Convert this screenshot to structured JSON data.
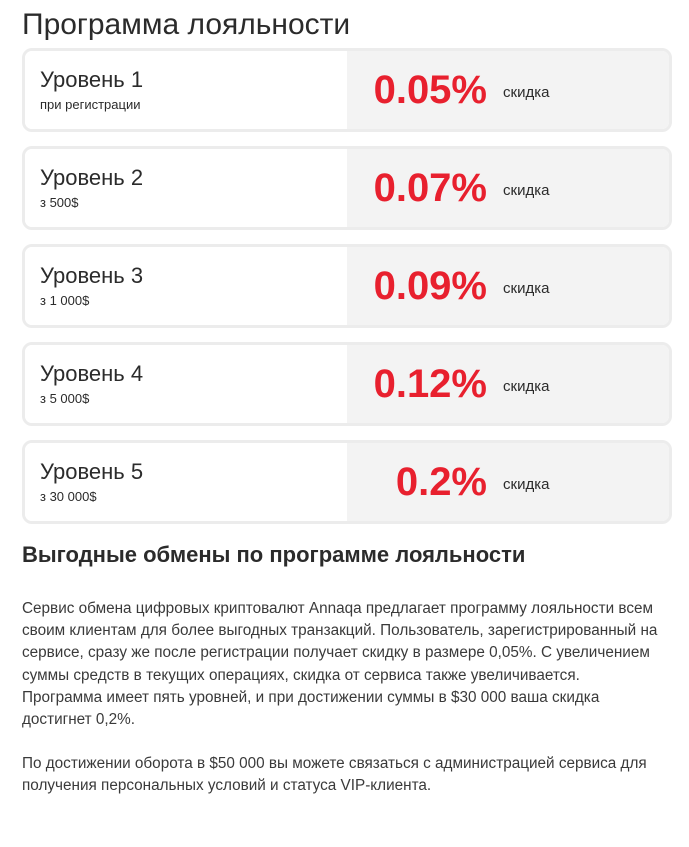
{
  "page": {
    "title": "Программа лояльности"
  },
  "levels": [
    {
      "name": "Уровень 1",
      "condition": "при регистрации",
      "discount": "0.05%",
      "unit": "скидка"
    },
    {
      "name": "Уровень 2",
      "condition": "з 500$",
      "discount": "0.07%",
      "unit": "скидка"
    },
    {
      "name": "Уровень 3",
      "condition": "з 1 000$",
      "discount": "0.09%",
      "unit": "скидка"
    },
    {
      "name": "Уровень 4",
      "condition": "з 5 000$",
      "discount": "0.12%",
      "unit": "скидка"
    },
    {
      "name": "Уровень 5",
      "condition": "з 30 000$",
      "discount": "0.2%",
      "unit": "скидка"
    }
  ],
  "section": {
    "title": "Выгодные обмены по программе лояльности",
    "paragraphs": [
      "Сервис обмена цифровых криптовалют Annaqa предлагает программу лояльности всем своим клиентам для более выгодных транзакций. Пользователь, зарегистрированный на сервисе, сразу же после регистрации получает скидку в размере 0,05%. С увеличением суммы средств в текущих операциях, скидка от сервиса также увеличивается. Программа имеет пять уровней, и при достижении суммы в $30 000 ваша скидка достигнет 0,2%.",
      "По достижении оборота в $50 000 вы можете связаться с администрацией сервиса для получения персональных условий и статуса VIP-клиента."
    ]
  },
  "colors": {
    "accent": "#e8202e",
    "card_border": "#ececec",
    "card_right_bg": "#f3f3f3"
  }
}
